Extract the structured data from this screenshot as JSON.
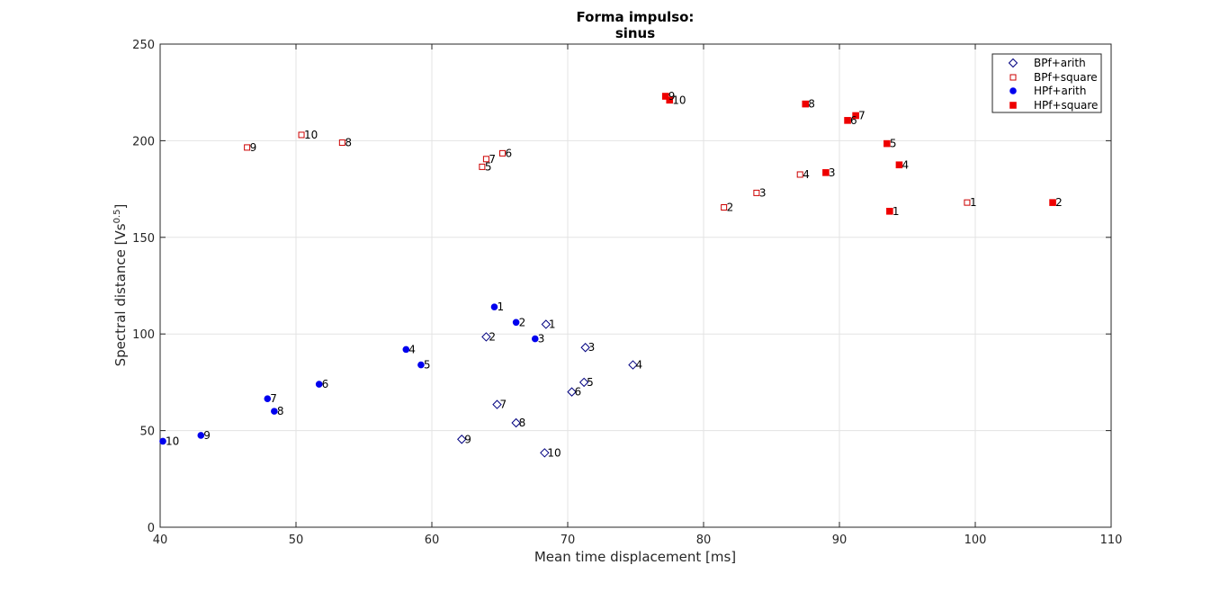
{
  "chart_data": {
    "type": "scatter",
    "title": "Forma impulso:",
    "subtitle": "sinus",
    "xlabel": "Mean time displacement [ms]",
    "ylabel_main": "Spectral distance [Vs",
    "ylabel_sup": "0.5",
    "ylabel_end": "]",
    "xlim": [
      40,
      110
    ],
    "ylim": [
      0,
      250
    ],
    "xticks": [
      40,
      50,
      60,
      70,
      80,
      90,
      100,
      110
    ],
    "yticks": [
      0,
      50,
      100,
      150,
      200,
      250
    ],
    "xtick_labels": [
      "40",
      "50",
      "60",
      "70",
      "80",
      "90",
      "100",
      "110"
    ],
    "ytick_labels": [
      "0",
      "50",
      "100",
      "150",
      "200",
      "250"
    ],
    "grid": true,
    "legend_position": "top-right",
    "series": [
      {
        "name": "BPf+arith",
        "marker": "diamond-open",
        "color": "#000080",
        "points": [
          {
            "x": 68.4,
            "y": 105,
            "label": "1"
          },
          {
            "x": 64.0,
            "y": 98.5,
            "label": "2"
          },
          {
            "x": 71.3,
            "y": 93,
            "label": "3"
          },
          {
            "x": 74.8,
            "y": 84,
            "label": "4"
          },
          {
            "x": 71.2,
            "y": 75,
            "label": "5"
          },
          {
            "x": 70.3,
            "y": 70,
            "label": "6"
          },
          {
            "x": 64.8,
            "y": 63.5,
            "label": "7"
          },
          {
            "x": 66.2,
            "y": 54,
            "label": "8"
          },
          {
            "x": 62.2,
            "y": 45.5,
            "label": "9"
          },
          {
            "x": 68.3,
            "y": 38.5,
            "label": "10"
          }
        ]
      },
      {
        "name": "BPf+square",
        "marker": "square-open",
        "color": "#cc0000",
        "points": [
          {
            "x": 99.4,
            "y": 168,
            "label": "1"
          },
          {
            "x": 81.5,
            "y": 165.5,
            "label": "2"
          },
          {
            "x": 83.9,
            "y": 173,
            "label": "3"
          },
          {
            "x": 87.1,
            "y": 182.5,
            "label": "4"
          },
          {
            "x": 63.7,
            "y": 186.5,
            "label": "5"
          },
          {
            "x": 65.2,
            "y": 193.5,
            "label": "6"
          },
          {
            "x": 64.0,
            "y": 190.5,
            "label": "7"
          },
          {
            "x": 53.4,
            "y": 199,
            "label": "8"
          },
          {
            "x": 46.4,
            "y": 196.5,
            "label": "9"
          },
          {
            "x": 50.4,
            "y": 203,
            "label": "10"
          }
        ]
      },
      {
        "name": "HPf+arith",
        "marker": "circle-filled",
        "color": "#0000ee",
        "points": [
          {
            "x": 64.6,
            "y": 114,
            "label": "1"
          },
          {
            "x": 66.2,
            "y": 106,
            "label": "2"
          },
          {
            "x": 67.6,
            "y": 97.5,
            "label": "3"
          },
          {
            "x": 58.1,
            "y": 92,
            "label": "4"
          },
          {
            "x": 59.2,
            "y": 84,
            "label": "5"
          },
          {
            "x": 51.7,
            "y": 74,
            "label": "6"
          },
          {
            "x": 47.9,
            "y": 66.5,
            "label": "7"
          },
          {
            "x": 48.4,
            "y": 60,
            "label": "8"
          },
          {
            "x": 43.0,
            "y": 47.5,
            "label": "9"
          },
          {
            "x": 40.2,
            "y": 44.5,
            "label": "10"
          }
        ]
      },
      {
        "name": "HPf+square",
        "marker": "square-filled",
        "color": "#ee0000",
        "points": [
          {
            "x": 93.7,
            "y": 163.5,
            "label": "1"
          },
          {
            "x": 105.7,
            "y": 168,
            "label": "2"
          },
          {
            "x": 89.0,
            "y": 183.5,
            "label": "3"
          },
          {
            "x": 94.4,
            "y": 187.5,
            "label": "4"
          },
          {
            "x": 93.5,
            "y": 198.5,
            "label": "5"
          },
          {
            "x": 90.6,
            "y": 210.5,
            "label": "6"
          },
          {
            "x": 91.2,
            "y": 213,
            "label": "7"
          },
          {
            "x": 87.5,
            "y": 219,
            "label": "8"
          },
          {
            "x": 77.2,
            "y": 223,
            "label": "9"
          },
          {
            "x": 77.5,
            "y": 221,
            "label": "10"
          }
        ]
      }
    ]
  }
}
